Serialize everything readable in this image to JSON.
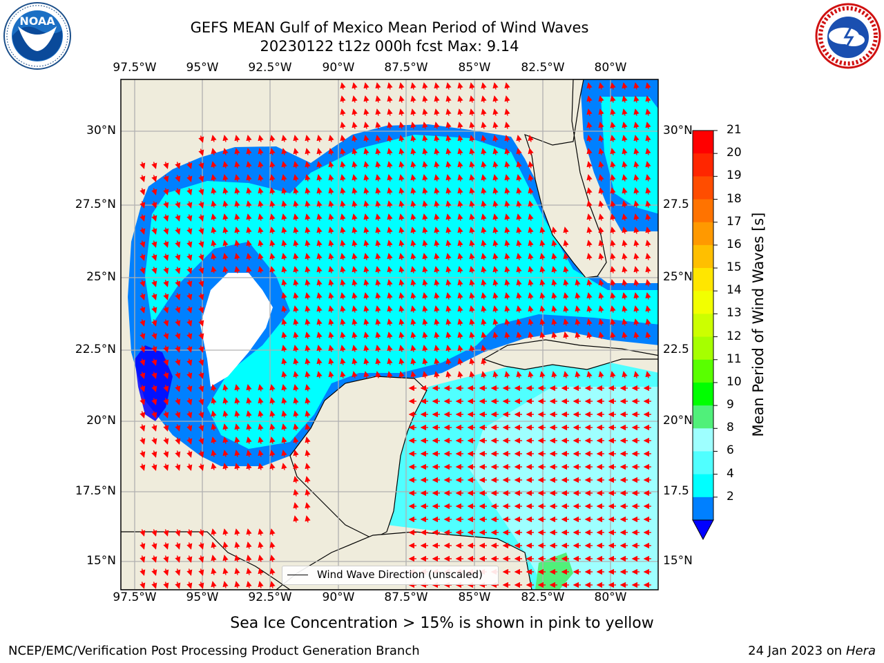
{
  "header": {
    "title": "GEFS MEAN Gulf of Mexico Mean Period of Wind Waves",
    "subtitle": "20230122 t12z 000h fcst   Max: 9.14"
  },
  "logos": {
    "left": "NOAA",
    "right": "NATIONAL WEATHER SERVICE"
  },
  "map": {
    "lon_ticks": [
      "97.5°W",
      "95°W",
      "92.5°W",
      "90°W",
      "87.5°W",
      "85°W",
      "82.5°W",
      "80°W"
    ],
    "lat_ticks_left": [
      "30°N",
      "27.5°N",
      "25°N",
      "22.5°N",
      "20°N",
      "17.5°N",
      "15°N"
    ],
    "lat_ticks_right": [
      "30°N",
      "27.5",
      "25°N",
      "22.5",
      "20°N",
      "17.5",
      "15°N"
    ],
    "legend_label": "Wind Wave Direction (unscaled)",
    "land_color": "#efecdc",
    "arrow_color": "#ff0000"
  },
  "colorbar": {
    "title": "Mean Period of Wind Waves [s]",
    "labels": [
      "21",
      "20",
      "19",
      "18",
      "17",
      "16",
      "15",
      "14",
      "13",
      "12",
      "11",
      "10",
      "9",
      "8",
      "6",
      "4",
      "2"
    ],
    "colors": [
      "#ff0000",
      "#ff2600",
      "#ff4d00",
      "#ff7300",
      "#ff9900",
      "#ffbf00",
      "#ffe600",
      "#f2ff00",
      "#ccff00",
      "#a6ff00",
      "#59ff00",
      "#00ff00",
      "#50f07a",
      "#9effff",
      "#50ffff",
      "#00ffff",
      "#0080ff"
    ],
    "extend_color": "#0000ff"
  },
  "caption": "Sea Ice Concentration > 15% is shown in pink to yellow",
  "footer": {
    "left": "NCEP/EMC/Verification Post Processing Product Generation Branch",
    "right_prefix": "24 Jan 2023 on ",
    "right_host": "Hera"
  }
}
